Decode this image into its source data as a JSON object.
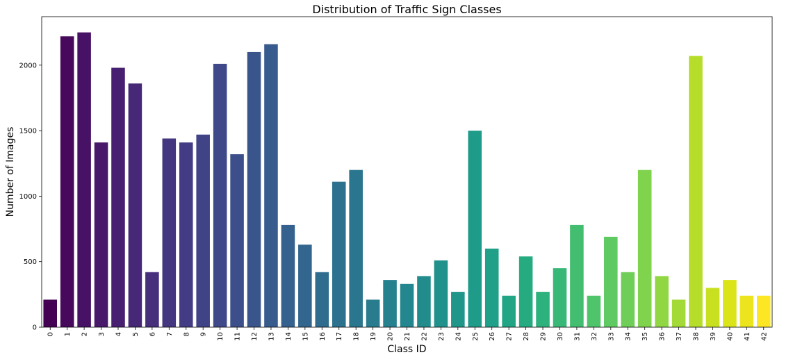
{
  "chart_data": {
    "type": "bar",
    "title": "Distribution of Traffic Sign Classes",
    "xlabel": "Class ID",
    "ylabel": "Number of Images",
    "categories": [
      "0",
      "1",
      "2",
      "3",
      "4",
      "5",
      "6",
      "7",
      "8",
      "9",
      "10",
      "11",
      "12",
      "13",
      "14",
      "15",
      "16",
      "17",
      "18",
      "19",
      "20",
      "21",
      "22",
      "23",
      "24",
      "25",
      "26",
      "27",
      "28",
      "29",
      "30",
      "31",
      "32",
      "33",
      "34",
      "35",
      "36",
      "37",
      "38",
      "39",
      "40",
      "41",
      "42"
    ],
    "values": [
      210,
      2220,
      2250,
      1410,
      1980,
      1860,
      420,
      1440,
      1410,
      1470,
      2010,
      1320,
      2100,
      2160,
      780,
      630,
      420,
      1110,
      1200,
      210,
      360,
      330,
      390,
      510,
      270,
      1500,
      600,
      240,
      540,
      270,
      450,
      780,
      240,
      690,
      420,
      1200,
      390,
      210,
      2070,
      300,
      360,
      240,
      240
    ],
    "ylim": [
      0,
      2370
    ],
    "yticks": [
      0,
      500,
      1000,
      1500,
      2000
    ],
    "colormap": "viridis",
    "colors": [
      "#440154",
      "#471164",
      "#481f70",
      "#472d7b",
      "#443a83",
      "#404688",
      "#3b528b",
      "#365d8d",
      "#31688e",
      "#2c728e",
      "#287c8e",
      "#24868e",
      "#21918c",
      "#1f9a8a",
      "#20a386",
      "#29af7f",
      "#3dbc74",
      "#56c667",
      "#75d054",
      "#95d840",
      "#bade28",
      "#dde318",
      "#fde725"
    ],
    "grid": false
  }
}
